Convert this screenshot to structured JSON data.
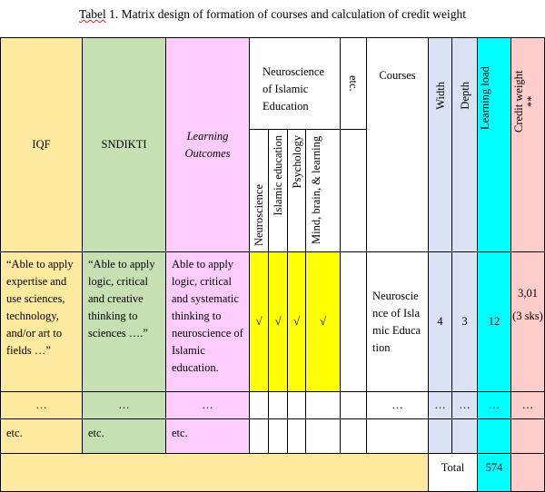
{
  "caption": {
    "prefix": "Tabel",
    "rest": " 1. Matrix design of formation of courses and calculation of credit weight"
  },
  "headers": {
    "iqf": "IQF",
    "sndikti": "SNDIKTI",
    "learning_outcomes": "Learning Outcomes",
    "neuroscience_group": "Neuroscience of Islamic Education",
    "etc": "etc.",
    "courses": "Courses",
    "width": "Width",
    "depth": "Depth",
    "learning_load": "Learning load",
    "credit_weight": "Credit weight **",
    "sub": [
      "Neuroscience",
      "Islamic education",
      "Psychology",
      "Mind, brain, & learning"
    ]
  },
  "row1": {
    "iqf": "“Able to apply expertise and use sciences, technology, and/or art to fields …”",
    "sndikti": "“Able to apply logic, critical and creative thinking to sciences ….”",
    "learning_outcomes": "Able to apply logic, critical and systematic thinking to neuroscience of Islamic education.",
    "checks": [
      "√",
      "√",
      "√",
      "√"
    ],
    "course": "Neuroscience of Islamic Education",
    "width": "4",
    "depth": "3",
    "learning_load": "12",
    "credit_value": "3,01",
    "credit_sks": "(3 sks)"
  },
  "row2": {
    "ellipsis": "…"
  },
  "row3": {
    "etc": "etc."
  },
  "total": {
    "label": "Total",
    "value": "574"
  }
}
